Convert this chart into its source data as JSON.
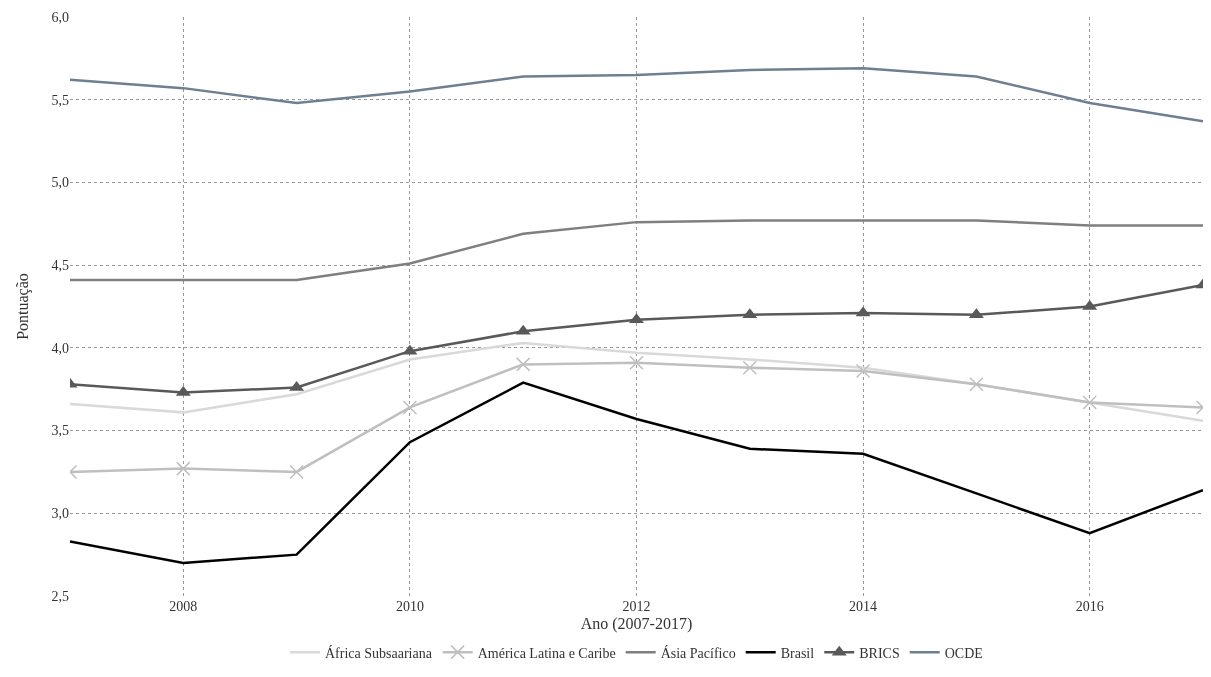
{
  "chart_data": {
    "type": "line",
    "xlabel": "Ano (2007-2017)",
    "ylabel": "Pontuação",
    "x": [
      2007,
      2008,
      2009,
      2010,
      2011,
      2012,
      2013,
      2014,
      2015,
      2016,
      2017
    ],
    "xlim": [
      2007,
      2017
    ],
    "xticks": [
      2008,
      2010,
      2012,
      2014,
      2016
    ],
    "ylim": [
      2.5,
      6.0
    ],
    "yticks": [
      {
        "value": 2.5,
        "label": "2,5"
      },
      {
        "value": 3.0,
        "label": "3,0"
      },
      {
        "value": 3.5,
        "label": "3,5"
      },
      {
        "value": 4.0,
        "label": "4,0"
      },
      {
        "value": 4.5,
        "label": "4,5"
      },
      {
        "value": 5.0,
        "label": "5,0"
      },
      {
        "value": 5.5,
        "label": "5,5"
      },
      {
        "value": 6.0,
        "label": "6,0"
      }
    ],
    "grid": true,
    "legend": "bottom",
    "series": [
      {
        "name": "África Subsaariana",
        "color": "#d9d9d9",
        "marker": "none",
        "values": [
          3.66,
          3.61,
          3.72,
          3.93,
          4.03,
          3.97,
          3.93,
          3.88,
          3.78,
          3.67,
          3.56
        ]
      },
      {
        "name": "América Latina e Caribe",
        "color": "#bfbfbf",
        "marker": "cross",
        "values": [
          3.25,
          3.27,
          3.25,
          3.64,
          3.9,
          3.91,
          3.88,
          3.86,
          3.78,
          3.67,
          3.64
        ]
      },
      {
        "name": "Ásia Pacífico",
        "color": "#7f7f7f",
        "marker": "none",
        "values": [
          4.41,
          4.41,
          4.41,
          4.51,
          4.69,
          4.76,
          4.77,
          4.77,
          4.77,
          4.74,
          4.74
        ]
      },
      {
        "name": "Brasil",
        "color": "#000000",
        "marker": "none",
        "values": [
          2.83,
          2.7,
          2.75,
          3.43,
          3.79,
          3.57,
          3.39,
          3.36,
          3.12,
          2.88,
          3.14
        ]
      },
      {
        "name": "BRICS",
        "color": "#595959",
        "marker": "triangle",
        "values": [
          3.78,
          3.73,
          3.76,
          3.98,
          4.1,
          4.17,
          4.2,
          4.21,
          4.2,
          4.25,
          4.38
        ]
      },
      {
        "name": "OCDE",
        "color": "#6e7f91",
        "marker": "none",
        "values": [
          5.62,
          5.57,
          5.48,
          5.55,
          5.64,
          5.65,
          5.68,
          5.69,
          5.64,
          5.48,
          5.37
        ]
      }
    ]
  }
}
